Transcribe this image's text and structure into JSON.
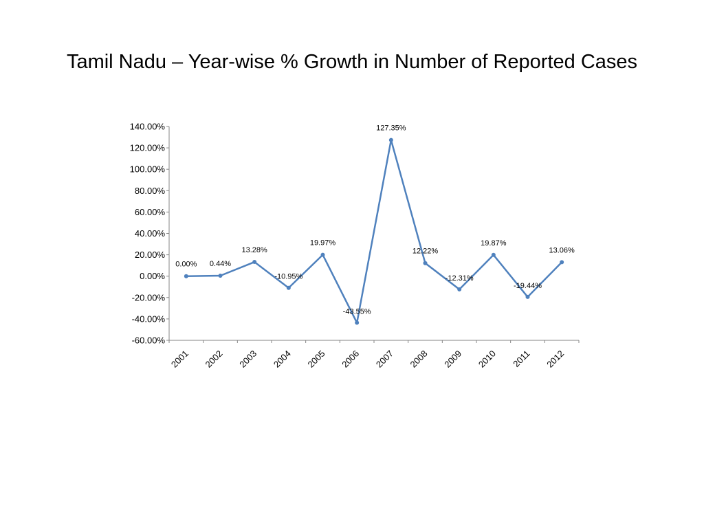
{
  "slide": {
    "title": "Tamil Nadu – Year-wise % Growth in Number of Reported Cases"
  },
  "chart_data": {
    "type": "line",
    "title": "",
    "xlabel": "",
    "ylabel": "",
    "categories": [
      "2001",
      "2002",
      "2003",
      "2004",
      "2005",
      "2006",
      "2007",
      "2008",
      "2009",
      "2010",
      "2011",
      "2012"
    ],
    "series": [
      {
        "name": "",
        "values": [
          0.0,
          0.44,
          13.28,
          -10.95,
          19.97,
          -43.55,
          127.35,
          12.22,
          -12.31,
          19.87,
          -19.44,
          13.06
        ],
        "labels": [
          "0.00%",
          "0.44%",
          "13.28%",
          "-10.95%",
          "19.97%",
          "-43.55%",
          "127.35%",
          "12.22%",
          "-12.31%",
          "19.87%",
          "-19.44%",
          "13.06%"
        ]
      }
    ],
    "ylim": [
      -60,
      140
    ],
    "yticks": [
      140,
      120,
      100,
      80,
      60,
      40,
      20,
      0,
      -20,
      -40,
      -60
    ],
    "ytick_labels": [
      "140.00%",
      "120.00%",
      "100.00%",
      "80.00%",
      "60.00%",
      "40.00%",
      "20.00%",
      "0.00%",
      "-20.00%",
      "-40.00%",
      "-60.00%"
    ],
    "grid": false,
    "legend": "none",
    "line_color": "#4f81bd"
  }
}
